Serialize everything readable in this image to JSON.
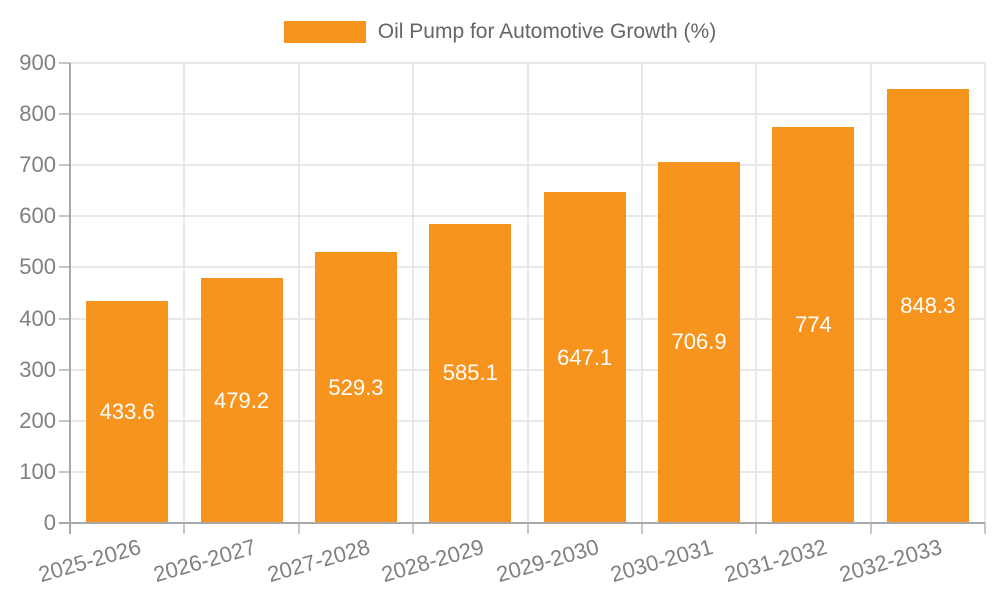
{
  "chart_data": {
    "type": "bar",
    "title": "Oil Pump for Automotive Growth (%)",
    "legend": [
      "Oil Pump for Automotive Growth (%)"
    ],
    "legend_position": "top",
    "categories": [
      "2025-2026",
      "2026-2027",
      "2027-2028",
      "2028-2029",
      "2029-2030",
      "2030-2031",
      "2031-2032",
      "2032-2033"
    ],
    "values": [
      433.6,
      479.2,
      529.3,
      585.1,
      647.1,
      706.9,
      774,
      848.3
    ],
    "xlabel": "",
    "ylabel": "",
    "ylim": [
      0,
      900
    ],
    "ytick_step": 100,
    "yticks": [
      0,
      100,
      200,
      300,
      400,
      500,
      600,
      700,
      800,
      900
    ],
    "grid": true,
    "colors": {
      "bar": "#F7941E",
      "bar_label": "#FFFFFF",
      "axis": "#A8A8A8",
      "gridline": "#E8E8E8",
      "tick": "#C6C6C6",
      "tick_label": "#808080",
      "legend_text": "#666666",
      "background": "#FFFFFF"
    }
  }
}
